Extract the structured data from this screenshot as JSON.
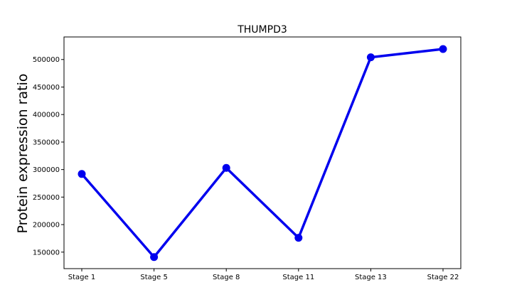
{
  "chart_data": {
    "type": "line",
    "title": "THUMPD3",
    "xlabel": "",
    "ylabel": "Protein expression ratio",
    "categories": [
      "Stage 1",
      "Stage 5",
      "Stage 8",
      "Stage 11",
      "Stage 13",
      "Stage 22"
    ],
    "series": [
      {
        "values": [
          292000,
          141000,
          303000,
          176000,
          504000,
          519000
        ]
      }
    ],
    "ylim": [
      120000,
      541000
    ],
    "yticks": [
      150000,
      200000,
      250000,
      300000,
      350000,
      400000,
      450000,
      500000
    ],
    "ytick_labels": [
      "150000",
      "200000",
      "250000",
      "300000",
      "350000",
      "400000",
      "450000",
      "500000"
    ],
    "grid": false,
    "colors": {
      "line": "#0000ee",
      "marker": "#0000ee",
      "frame": "#000000"
    }
  }
}
